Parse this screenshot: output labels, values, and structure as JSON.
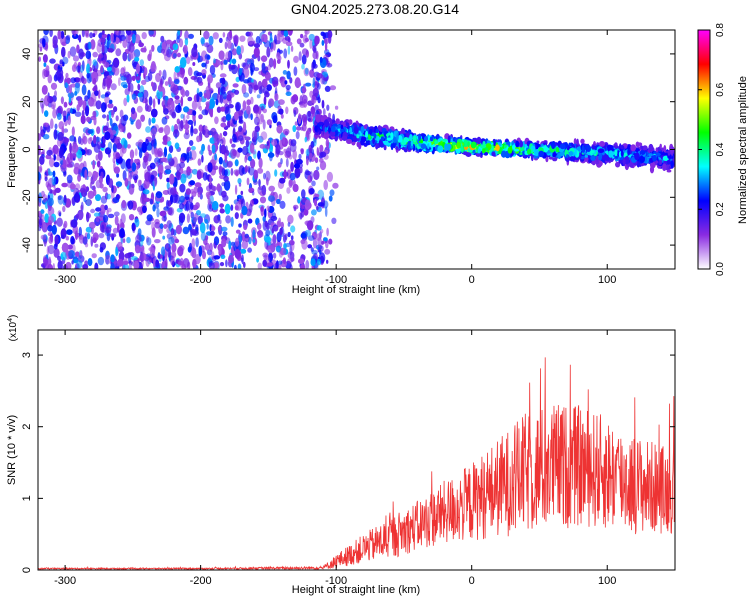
{
  "title": "GN04.2025.273.08.20.G14",
  "chart_data": [
    {
      "type": "heatmap",
      "xlabel": "Height of straight line (km)",
      "ylabel": "Frequency (Hz)",
      "xlim": [
        -320,
        150
      ],
      "ylim": [
        -50,
        50
      ],
      "x_ticks": [
        -300,
        -200,
        -100,
        0,
        100
      ],
      "y_ticks": [
        -40,
        -20,
        0,
        20,
        40
      ],
      "grid": false,
      "colorbar": {
        "label": "Normalized spectral amplitude",
        "range": [
          0.0,
          0.8
        ],
        "ticks": [
          0.0,
          0.2,
          0.4,
          0.6,
          0.8
        ],
        "stops": [
          "#ffffff",
          "#8a2be2",
          "#0000ff",
          "#00ffff",
          "#00ff00",
          "#ffff00",
          "#ff0000",
          "#ff00ff"
        ]
      },
      "noise_region": {
        "x": [
          -320,
          -105
        ],
        "amplitude": [
          0.05,
          0.3
        ]
      },
      "signal_track": {
        "x": [
          -115,
          -80,
          -40,
          0,
          40,
          80,
          110,
          150
        ],
        "center_frequency": [
          10,
          6,
          3,
          1,
          0,
          -1,
          -2,
          -4
        ],
        "half_width": [
          6,
          6,
          5,
          4,
          4,
          5,
          6,
          6
        ],
        "peak_amplitude": [
          0.3,
          0.45,
          0.55,
          0.7,
          0.55,
          0.45,
          0.4,
          0.35
        ]
      }
    },
    {
      "type": "line",
      "xlabel": "Height of straight line (km)",
      "ylabel": "SNR (10 * v/v)",
      "scale_label": "(x10",
      "scale_exponent": "4",
      "y_unit_multiplier": 10000,
      "xlim": [
        -320,
        150
      ],
      "ylim": [
        0,
        3.35
      ],
      "x_ticks": [
        -300,
        -200,
        -100,
        0,
        100
      ],
      "y_ticks": [
        0,
        1,
        2,
        3
      ],
      "line_color": "#ee3333",
      "series": [
        {
          "x": [
            -320,
            -200,
            -110,
            -100,
            -80,
            -60,
            -40,
            -20,
            0,
            20,
            40,
            60,
            80,
            100,
            120,
            150
          ],
          "mean": [
            0.02,
            0.02,
            0.03,
            0.12,
            0.3,
            0.45,
            0.62,
            0.8,
            0.95,
            1.15,
            1.35,
            1.45,
            1.45,
            1.35,
            1.2,
            1.1
          ],
          "spread": [
            0.01,
            0.01,
            0.02,
            0.1,
            0.2,
            0.3,
            0.35,
            0.45,
            0.55,
            0.7,
            0.85,
            0.9,
            0.85,
            0.8,
            0.7,
            0.6
          ]
        }
      ]
    }
  ]
}
